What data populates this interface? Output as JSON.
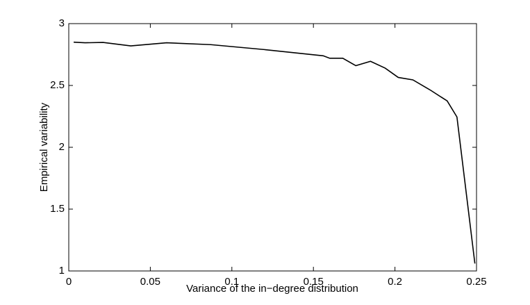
{
  "chart_data": {
    "type": "line",
    "xlabel": "Variance of the in−degree distribution",
    "ylabel": "Empirical variability",
    "x": [
      0.003,
      0.01,
      0.021,
      0.038,
      0.06,
      0.087,
      0.12,
      0.156,
      0.16,
      0.168,
      0.176,
      0.185,
      0.194,
      0.202,
      0.211,
      0.222,
      0.232,
      0.238,
      0.249
    ],
    "series": [
      {
        "color": "#000000",
        "values": [
          2.85,
          2.845,
          2.848,
          2.82,
          2.845,
          2.83,
          2.79,
          2.74,
          2.72,
          2.72,
          2.66,
          2.695,
          2.64,
          2.565,
          2.545,
          2.46,
          2.375,
          2.245,
          1.06
        ]
      }
    ],
    "xlim": [
      0,
      0.25
    ],
    "xticks": [
      0,
      0.05,
      0.1,
      0.15,
      0.2,
      0.25
    ],
    "ylim": [
      1,
      3
    ],
    "yticks": [
      1,
      1.5,
      2,
      2.5,
      3
    ]
  }
}
